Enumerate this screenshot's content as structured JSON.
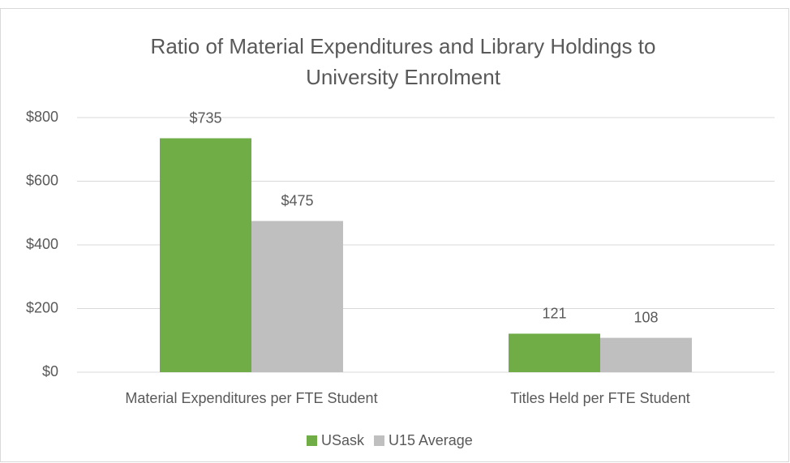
{
  "chart_data": {
    "type": "bar",
    "title": "Ratio of Material Expenditures and Library Holdings to University Enrolment",
    "categories": [
      "Material Expenditures per FTE Student",
      "Titles Held per FTE Student"
    ],
    "series": [
      {
        "name": "USask",
        "color": "#70ad47",
        "values": [
          735,
          121
        ],
        "value_labels": [
          "$735",
          "121"
        ]
      },
      {
        "name": "U15 Average",
        "color": "#bfbfbf",
        "values": [
          475,
          108
        ],
        "value_labels": [
          "$475",
          "108"
        ]
      }
    ],
    "ylim": [
      0,
      800
    ],
    "yticks": [
      {
        "value": 0,
        "label": "$0"
      },
      {
        "value": 200,
        "label": "$200"
      },
      {
        "value": 400,
        "label": "$400"
      },
      {
        "value": 600,
        "label": "$600"
      },
      {
        "value": 800,
        "label": "$800"
      }
    ],
    "grid": true,
    "legend": "bottom"
  }
}
